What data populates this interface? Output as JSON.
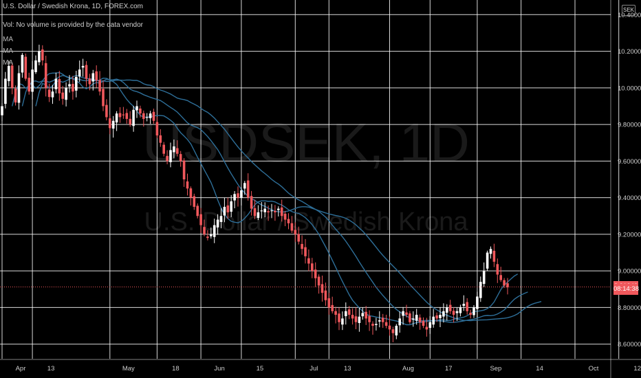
{
  "header": {
    "symbol_title": "U.S. Dollar / Swedish Krona, 1D, FOREX.com",
    "volume_note": "Vol: No volume is provided by the data vendor",
    "ma_labels": [
      "MA",
      "MA",
      "MA"
    ],
    "currency_badge": "SEK"
  },
  "watermark": {
    "line1": "USDSEK, 1D",
    "line2": "U.S. Dollar / Swedish Krona"
  },
  "price_tag": {
    "value": "8.91243",
    "countdown": "08:14:38"
  },
  "colors": {
    "up": "#ffffff",
    "down": "#f0585c",
    "ma": "#2e6f99",
    "grid": "#ffffff"
  },
  "chart_data": {
    "type": "candlestick",
    "x_tick_labels": [
      "Apr",
      "13",
      "May",
      "18",
      "Jun",
      "15",
      "Jul",
      "13",
      "Aug",
      "17",
      "Sep",
      "14",
      "Oct",
      "12"
    ],
    "y_tick_labels": [
      "8.60000",
      "8.80000",
      "9.00000",
      "9.20000",
      "9.40000",
      "9.60000",
      "9.80000",
      "10.00000",
      "10.20000",
      "10.40000"
    ],
    "ylim": [
      8.52,
      10.48
    ],
    "y_ticks": [
      8.6,
      8.8,
      9.0,
      9.2,
      9.4,
      9.6,
      9.8,
      10.0,
      10.2,
      10.4
    ],
    "last_price": 8.91243,
    "series": [
      {
        "name": "USDSEK",
        "closes": [
          9.9,
          10.05,
          10.12,
          10.0,
          9.92,
          10.08,
          10.18,
          10.05,
          9.98,
          10.1,
          10.15,
          10.2,
          10.15,
          10.0,
          9.95,
          9.98,
          10.05,
          9.97,
          9.94,
          10.0,
          10.02,
          9.98,
          10.06,
          10.1,
          10.12,
          10.05,
          10.02,
          10.08,
          10.04,
          9.98,
          9.9,
          9.84,
          9.78,
          9.82,
          9.86,
          9.84,
          9.85,
          9.83,
          9.8,
          9.88,
          9.9,
          9.86,
          9.83,
          9.84,
          9.86,
          9.82,
          9.74,
          9.7,
          9.64,
          9.6,
          9.66,
          9.68,
          9.64,
          9.6,
          9.5,
          9.45,
          9.4,
          9.35,
          9.3,
          9.25,
          9.2,
          9.18,
          9.2,
          9.25,
          9.28,
          9.3,
          9.35,
          9.32,
          9.38,
          9.42,
          9.4,
          9.44,
          9.48,
          9.4,
          9.34,
          9.3,
          9.32,
          9.33,
          9.34,
          9.32,
          9.33,
          9.32,
          9.34,
          9.3,
          9.28,
          9.26,
          9.22,
          9.2,
          9.16,
          9.12,
          9.08,
          9.04,
          9.0,
          8.96,
          8.92,
          8.88,
          8.84,
          8.8,
          8.78,
          8.76,
          8.72,
          8.74,
          8.78,
          8.76,
          8.74,
          8.72,
          8.75,
          8.77,
          8.74,
          8.72,
          8.7,
          8.71,
          8.73,
          8.72,
          8.7,
          8.68,
          8.66,
          8.7,
          8.74,
          8.78,
          8.76,
          8.72,
          8.74,
          8.76,
          8.72,
          8.7,
          8.68,
          8.72,
          8.75,
          8.74,
          8.76,
          8.78,
          8.8,
          8.78,
          8.76,
          8.78,
          8.8,
          8.82,
          8.78,
          8.76,
          8.8,
          8.86,
          8.94,
          9.0,
          9.1,
          9.12,
          9.05,
          8.98,
          8.95,
          8.92,
          8.91
        ]
      }
    ]
  }
}
